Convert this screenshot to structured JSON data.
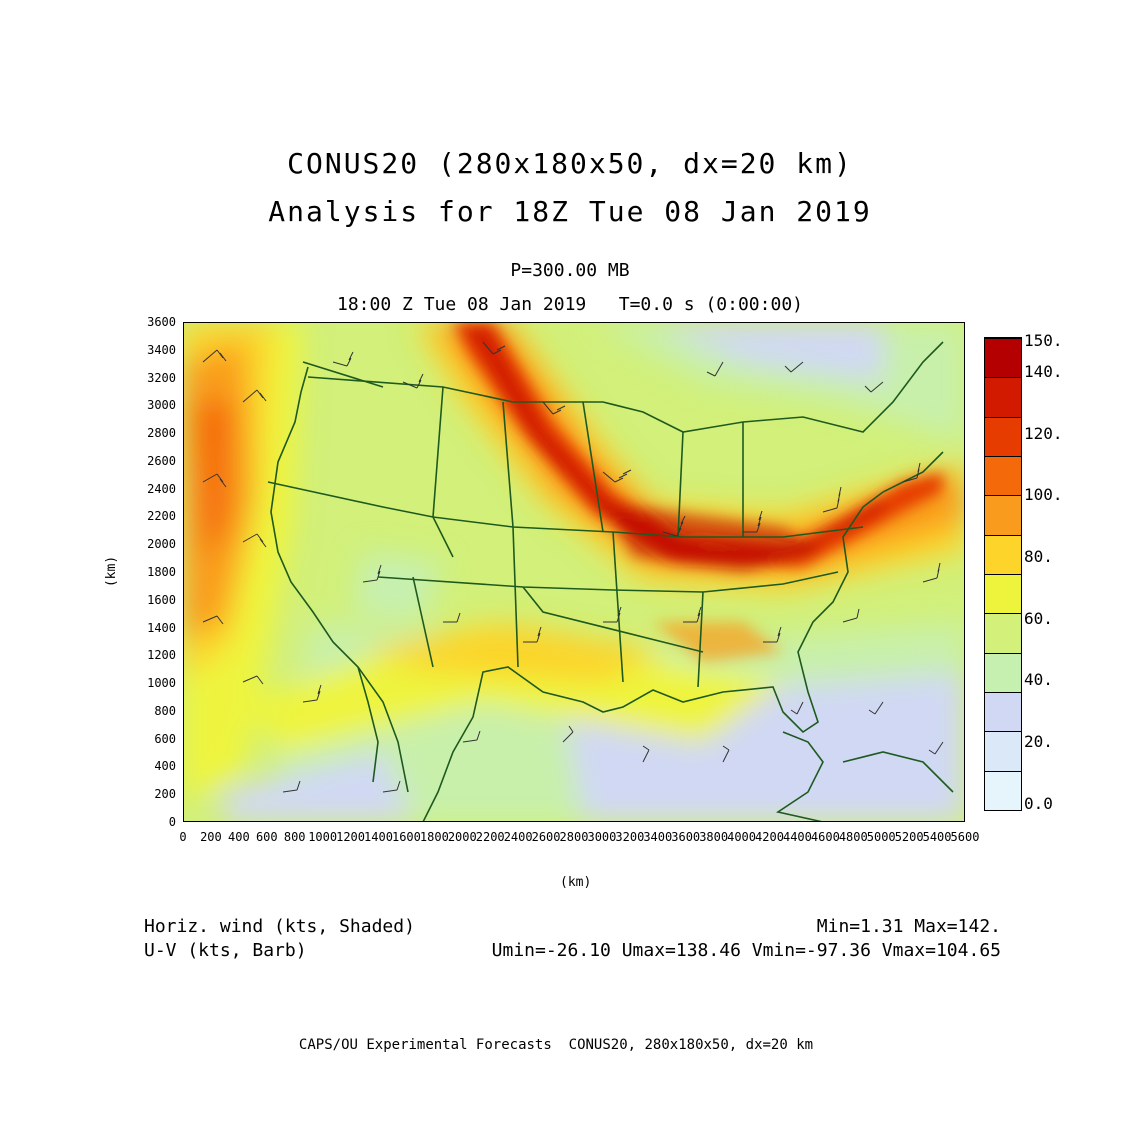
{
  "header": {
    "title_line1": "CONUS20 (280x180x50, dx=20 km)",
    "title_line2": "Analysis for 18Z Tue 08 Jan 2019",
    "level": "P=300.00 MB",
    "valid_time": "18:00 Z Tue 08 Jan 2019   T=0.0 s (0:00:00)"
  },
  "axes": {
    "y_label": "(km)",
    "x_label": "(km)",
    "y_ticks": [
      "0",
      "200",
      "400",
      "600",
      "800",
      "1000",
      "1200",
      "1400",
      "1600",
      "1800",
      "2000",
      "2200",
      "2400",
      "2600",
      "2800",
      "3000",
      "3200",
      "3400",
      "3600"
    ],
    "x_ticks": [
      "0",
      "200",
      "400",
      "600",
      "800",
      "1000",
      "1200",
      "1400",
      "1600",
      "1800",
      "2000",
      "2200",
      "2400",
      "2600",
      "2800",
      "3000",
      "3200",
      "3400",
      "3600",
      "3800",
      "4000",
      "4200",
      "4400",
      "4600",
      "4800",
      "5000",
      "5200",
      "5400",
      "5600"
    ]
  },
  "colorbar": {
    "labels": [
      "150.",
      "140.",
      "120.",
      "100.",
      "80.",
      "60.",
      "40.",
      "20.",
      "0.0"
    ],
    "colors": [
      "#b40000",
      "#d21a00",
      "#e63c00",
      "#f46a0a",
      "#f99c1e",
      "#fcd42a",
      "#eef43c",
      "#d2f07a",
      "#c6f0b0",
      "#d0d8f4",
      "#dbe8f8",
      "#e6f4fb"
    ]
  },
  "footer": {
    "left_line1": "Horiz. wind (kts, Shaded)",
    "left_line2": "U-V (kts, Barb)",
    "right_line1": "Min=1.31 Max=142.",
    "right_line2": "Umin=-26.10 Umax=138.46 Vmin=-97.36 Vmax=104.65",
    "credit": "CAPS/OU Experimental Forecasts  CONUS20, 280x180x50, dx=20 km"
  }
}
